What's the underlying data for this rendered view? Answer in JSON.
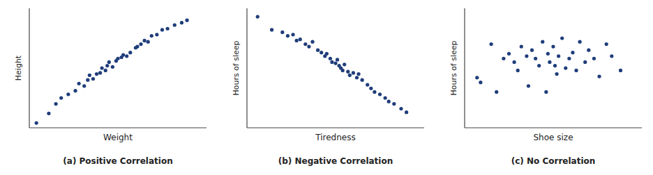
{
  "chart_data": [
    {
      "type": "scatter",
      "title": "(a) Positive Correlation",
      "x_label": "Weight",
      "y_label": "Height",
      "x": [
        0.04,
        0.11,
        0.15,
        0.18,
        0.22,
        0.26,
        0.28,
        0.31,
        0.33,
        0.34,
        0.36,
        0.38,
        0.4,
        0.41,
        0.43,
        0.44,
        0.45,
        0.47,
        0.49,
        0.5,
        0.52,
        0.53,
        0.55,
        0.57,
        0.6,
        0.61,
        0.63,
        0.65,
        0.67,
        0.69,
        0.72,
        0.75,
        0.78,
        0.82,
        0.86,
        0.89
      ],
      "values": [
        0.04,
        0.12,
        0.2,
        0.25,
        0.28,
        0.31,
        0.37,
        0.35,
        0.4,
        0.44,
        0.41,
        0.45,
        0.46,
        0.5,
        0.48,
        0.52,
        0.55,
        0.51,
        0.56,
        0.58,
        0.59,
        0.61,
        0.6,
        0.63,
        0.67,
        0.68,
        0.7,
        0.73,
        0.72,
        0.77,
        0.78,
        0.82,
        0.83,
        0.86,
        0.88,
        0.9
      ],
      "color": "#1f3d7a",
      "xlim": [
        0,
        1.0
      ],
      "ylim": [
        0,
        1.0
      ],
      "tick_labels": false
    },
    {
      "type": "scatter",
      "title": "(b) Negative Correlation",
      "x_label": "Tiredness",
      "y_label": "Hours of sleep",
      "x": [
        0.06,
        0.14,
        0.2,
        0.23,
        0.26,
        0.28,
        0.3,
        0.33,
        0.35,
        0.37,
        0.4,
        0.42,
        0.44,
        0.45,
        0.47,
        0.48,
        0.5,
        0.51,
        0.52,
        0.53,
        0.54,
        0.55,
        0.57,
        0.58,
        0.6,
        0.62,
        0.63,
        0.65,
        0.68,
        0.7,
        0.72,
        0.75,
        0.78,
        0.8,
        0.83,
        0.87,
        0.9
      ],
      "values": [
        0.93,
        0.82,
        0.8,
        0.77,
        0.78,
        0.73,
        0.74,
        0.7,
        0.68,
        0.72,
        0.65,
        0.63,
        0.6,
        0.62,
        0.58,
        0.55,
        0.54,
        0.57,
        0.52,
        0.5,
        0.48,
        0.53,
        0.47,
        0.44,
        0.46,
        0.42,
        0.45,
        0.4,
        0.36,
        0.33,
        0.3,
        0.28,
        0.25,
        0.22,
        0.2,
        0.16,
        0.13
      ],
      "color": "#1f3d7a",
      "xlim": [
        0,
        1.0
      ],
      "ylim": [
        0,
        1.0
      ],
      "tick_labels": false
    },
    {
      "type": "scatter",
      "title": "(c) No Correlation",
      "x_label": "Shoe size",
      "y_label": "Hours of sleep",
      "x": [
        0.07,
        0.09,
        0.15,
        0.18,
        0.22,
        0.25,
        0.28,
        0.3,
        0.32,
        0.35,
        0.36,
        0.38,
        0.4,
        0.42,
        0.44,
        0.46,
        0.47,
        0.48,
        0.5,
        0.51,
        0.52,
        0.53,
        0.55,
        0.57,
        0.59,
        0.61,
        0.63,
        0.65,
        0.68,
        0.7,
        0.73,
        0.76,
        0.8,
        0.83,
        0.88
      ],
      "values": [
        0.42,
        0.38,
        0.7,
        0.3,
        0.58,
        0.62,
        0.55,
        0.48,
        0.68,
        0.6,
        0.35,
        0.65,
        0.58,
        0.52,
        0.72,
        0.3,
        0.62,
        0.55,
        0.68,
        0.52,
        0.45,
        0.6,
        0.75,
        0.5,
        0.58,
        0.63,
        0.48,
        0.72,
        0.55,
        0.65,
        0.58,
        0.43,
        0.7,
        0.6,
        0.48
      ],
      "color": "#1f3d7a",
      "xlim": [
        0,
        1.0
      ],
      "ylim": [
        0,
        1.0
      ],
      "tick_labels": false
    }
  ]
}
